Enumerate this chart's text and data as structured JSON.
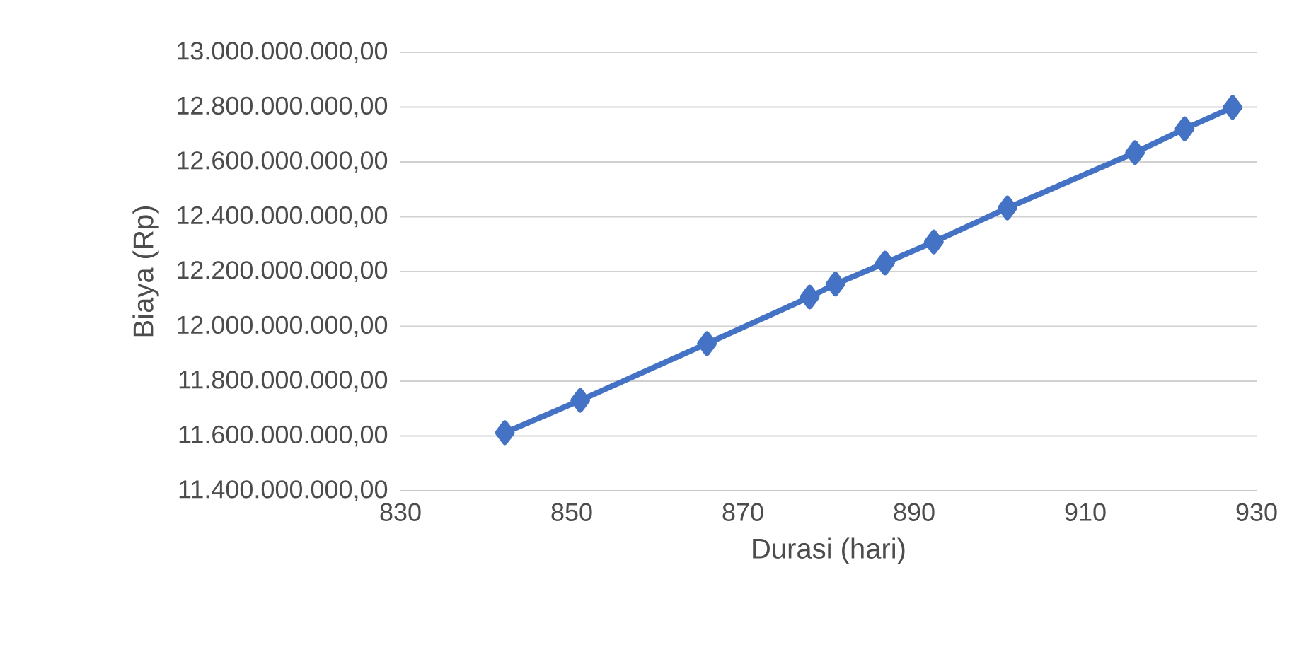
{
  "chart_data": {
    "type": "line",
    "xlabel": "Durasi (hari)",
    "ylabel": "Biaya (Rp)",
    "x": [
      842.2,
      851.0,
      865.8,
      877.8,
      880.8,
      886.6,
      892.3,
      900.9,
      915.8,
      921.6,
      927.2
    ],
    "series": [
      {
        "color": "#4472c4",
        "values": [
          11612000000,
          11730000000,
          11937000000,
          12107000000,
          12154000000,
          12231000000,
          12308000000,
          12432000000,
          12634000000,
          12721000000,
          12799000000
        ]
      }
    ],
    "xlim": [
      830,
      930
    ],
    "xticks": [
      830,
      850,
      870,
      890,
      910,
      930
    ],
    "ylim": [
      11400000000,
      13000000000
    ],
    "yticks": [
      {
        "value": 11400000000,
        "label": "11.400.000.000,00"
      },
      {
        "value": 11600000000,
        "label": "11.600.000.000,00"
      },
      {
        "value": 11800000000,
        "label": "11.800.000.000,00"
      },
      {
        "value": 12000000000,
        "label": "12.000.000.000,00"
      },
      {
        "value": 12200000000,
        "label": "12.200.000.000,00"
      },
      {
        "value": 12400000000,
        "label": "12.400.000.000,00"
      },
      {
        "value": 12600000000,
        "label": "12.600.000.000,00"
      },
      {
        "value": 12800000000,
        "label": "12.800.000.000,00"
      },
      {
        "value": 13000000000,
        "label": "13.000.000.000,00"
      }
    ],
    "grid": "y",
    "marker": "diamond",
    "line_style": "solid"
  }
}
